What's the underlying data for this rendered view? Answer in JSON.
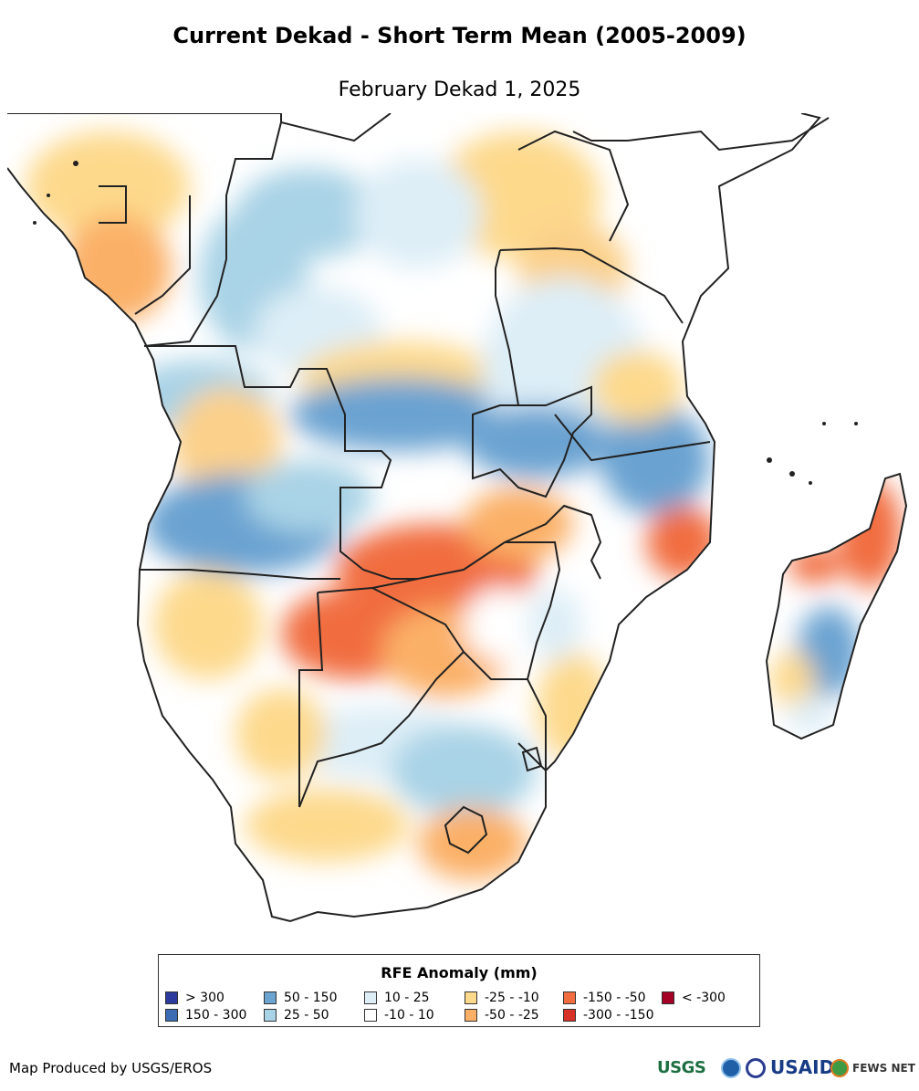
{
  "title": "Current Dekad - Short Term Mean (2005-2009)",
  "subtitle": "February Dekad 1, 2025",
  "legend": {
    "title": "RFE Anomaly (mm)",
    "items": [
      {
        "label": "> 300",
        "color": "#2b3a9c"
      },
      {
        "label": "150 - 300",
        "color": "#3c6db3"
      },
      {
        "label": "50 - 150",
        "color": "#6ba3d1"
      },
      {
        "label": "25 - 50",
        "color": "#a9d3e6"
      },
      {
        "label": "10 - 25",
        "color": "#ddeef7"
      },
      {
        "label": "-10 - 10",
        "color": "#ffffff"
      },
      {
        "label": "-25 - -10",
        "color": "#fdd98c"
      },
      {
        "label": "-50 - -25",
        "color": "#fbb068"
      },
      {
        "label": "-150 - -50",
        "color": "#f16d3f"
      },
      {
        "label": "-300 - -150",
        "color": "#d73027"
      },
      {
        "label": "< -300",
        "color": "#a50026"
      }
    ]
  },
  "credit": "Map Produced by USGS/EROS",
  "logos": {
    "usgs": "USGS",
    "usaid": "USAID",
    "fews": "FEWS NET"
  }
}
